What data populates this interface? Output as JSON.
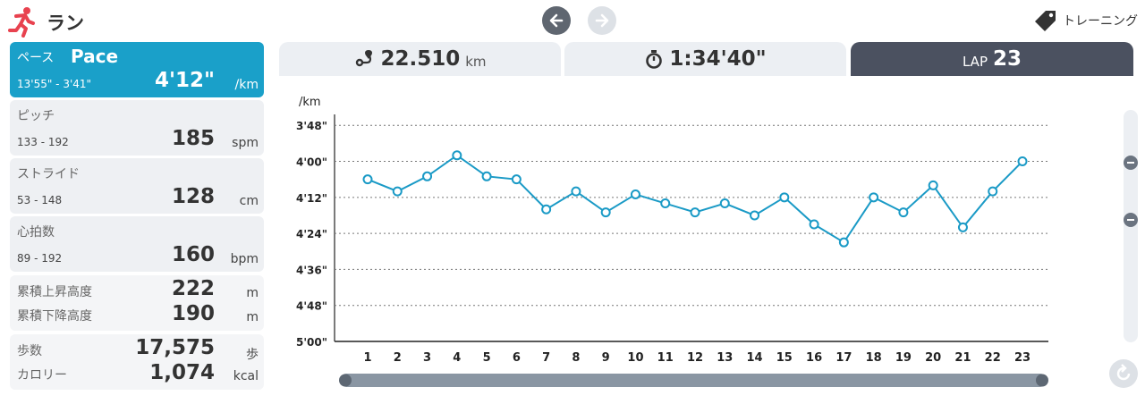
{
  "header": {
    "title": "ラン",
    "training_label": "トレーニング"
  },
  "metrics": {
    "pace": {
      "jp": "ペース",
      "en": "Pace",
      "range": "13'55\" - 3'41\"",
      "value": "4'12\"",
      "unit": "/km"
    },
    "pitch": {
      "label": "ピッチ",
      "range": "133 - 192",
      "value": "185",
      "unit": "spm"
    },
    "stride": {
      "label": "ストライド",
      "range": "53 - 148",
      "value": "128",
      "unit": "cm"
    },
    "heart": {
      "label": "心拍数",
      "range": "89 - 192",
      "value": "160",
      "unit": "bpm"
    },
    "ascent": {
      "label": "累積上昇高度",
      "value": "222",
      "unit": "m"
    },
    "descent": {
      "label": "累積下降高度",
      "value": "190",
      "unit": "m"
    },
    "steps": {
      "label": "歩数",
      "value": "17,575",
      "unit": "歩"
    },
    "calories": {
      "label": "カロリー",
      "value": "1,074",
      "unit": "kcal"
    }
  },
  "tabs": {
    "distance": {
      "value": "22.510",
      "unit": "km"
    },
    "time": {
      "value": "1:34'40\""
    },
    "lap": {
      "label": "LAP",
      "value": "23"
    }
  },
  "colors": {
    "accent": "#1aa0c9",
    "line": "#1a9ac6",
    "dark_tab": "#4b5160"
  },
  "chart_data": {
    "type": "line",
    "ylabel": "/km",
    "y_inverted": true,
    "ylim_seconds": [
      219,
      300
    ],
    "yticks": [
      {
        "label": "3'48\"",
        "sec": 228
      },
      {
        "label": "4'00\"",
        "sec": 240
      },
      {
        "label": "4'12\"",
        "sec": 252
      },
      {
        "label": "4'24\"",
        "sec": 264
      },
      {
        "label": "4'36\"",
        "sec": 276
      },
      {
        "label": "4'48\"",
        "sec": 288
      },
      {
        "label": "5'00\"",
        "sec": 300
      }
    ],
    "categories": [
      "1",
      "2",
      "3",
      "4",
      "5",
      "6",
      "7",
      "8",
      "9",
      "10",
      "11",
      "12",
      "13",
      "14",
      "15",
      "16",
      "17",
      "18",
      "19",
      "20",
      "21",
      "22",
      "23"
    ],
    "values_seconds": [
      246,
      250,
      245,
      238,
      245,
      246,
      256,
      250,
      257,
      251,
      254,
      257,
      254,
      258,
      252,
      261,
      267,
      252,
      257,
      248,
      262,
      250,
      240
    ],
    "grid": true
  }
}
